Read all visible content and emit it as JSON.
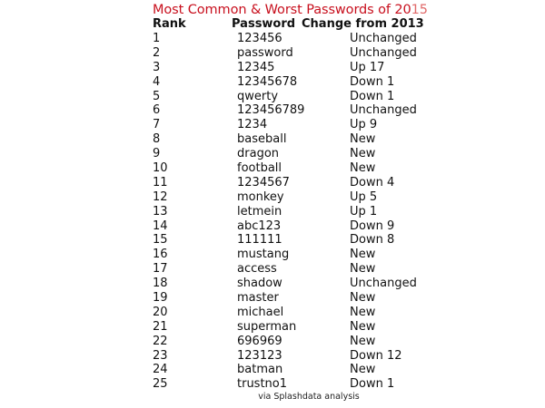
{
  "title": "Most Common & Worst Passwords of 20",
  "title_suffix": "15",
  "colors": {
    "title": "#c8101e",
    "text": "#111111"
  },
  "headers": {
    "rank": "Rank",
    "password": "Password",
    "change": "Change from 2013"
  },
  "rows": [
    {
      "rank": "1",
      "password": "123456",
      "change": "Unchanged"
    },
    {
      "rank": "2",
      "password": "password",
      "change": "Unchanged"
    },
    {
      "rank": "3",
      "password": "12345",
      "change": "Up 17"
    },
    {
      "rank": "4",
      "password": "12345678",
      "change": "Down 1"
    },
    {
      "rank": "5",
      "password": "qwerty",
      "change": "Down 1"
    },
    {
      "rank": "6",
      "password": "123456789",
      "change": "Unchanged"
    },
    {
      "rank": "7",
      "password": "1234",
      "change": "Up 9"
    },
    {
      "rank": "8",
      "password": "baseball",
      "change": "New"
    },
    {
      "rank": "9",
      "password": "dragon",
      "change": "New"
    },
    {
      "rank": "10",
      "password": "football",
      "change": "New"
    },
    {
      "rank": "11",
      "password": "1234567",
      "change": "Down 4"
    },
    {
      "rank": "12",
      "password": "monkey",
      "change": "Up 5"
    },
    {
      "rank": "13",
      "password": "letmein",
      "change": "Up 1"
    },
    {
      "rank": "14",
      "password": "abc123",
      "change": "Down 9"
    },
    {
      "rank": "15",
      "password": "111111",
      "change": "Down 8"
    },
    {
      "rank": "16",
      "password": "mustang",
      "change": "New"
    },
    {
      "rank": "17",
      "password": "access",
      "change": "New"
    },
    {
      "rank": "18",
      "password": "shadow",
      "change": "Unchanged"
    },
    {
      "rank": "19",
      "password": "master",
      "change": "New"
    },
    {
      "rank": "20",
      "password": "michael",
      "change": "New"
    },
    {
      "rank": "21",
      "password": "superman",
      "change": "New"
    },
    {
      "rank": "22",
      "password": "696969",
      "change": "New"
    },
    {
      "rank": "23",
      "password": "123123",
      "change": "Down 12"
    },
    {
      "rank": "24",
      "password": "batman",
      "change": "New"
    },
    {
      "rank": "25",
      "password": "trustno1",
      "change": "Down 1"
    }
  ],
  "footer": "via Splashdata analysis"
}
